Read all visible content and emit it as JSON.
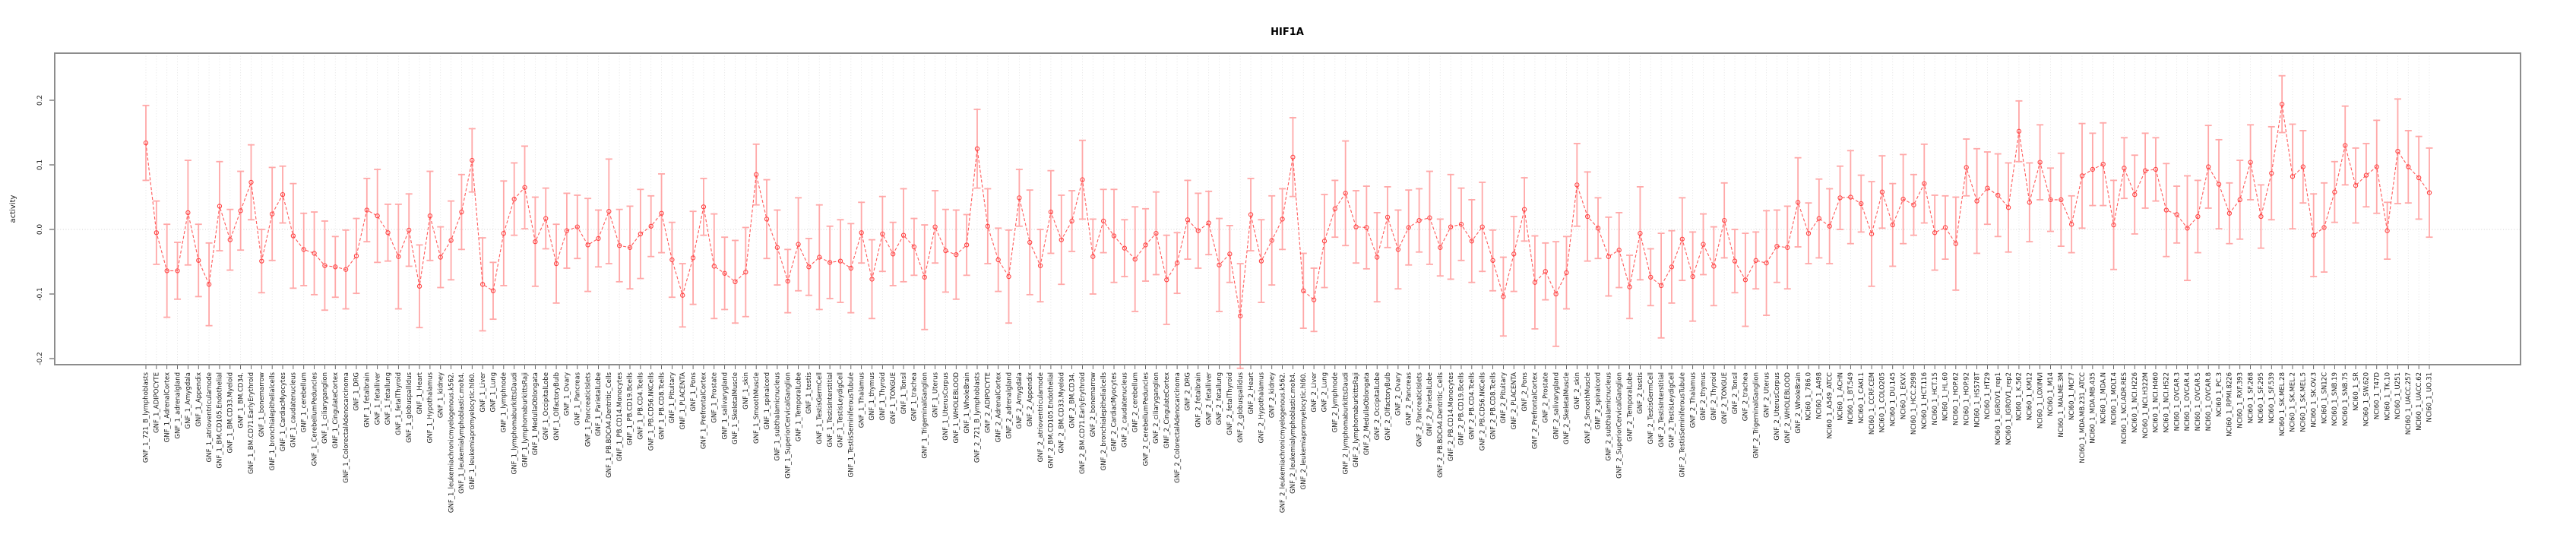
{
  "page": {
    "title": "HIF1A"
  },
  "chart_data": {
    "type": "line",
    "variant": "errorbar-means",
    "title": "HIF1A",
    "xlabel": "",
    "ylabel": "activity",
    "ylim": [
      -0.25,
      0.27
    ],
    "yticks_labels": [
      "-0.2",
      "-0.1",
      "0.0",
      "0.1",
      "0.2"
    ],
    "yticks_values": [
      -0.2,
      -0.1,
      0.0,
      0.1,
      0.2
    ],
    "grid": "light dotted vertical line per category, dotted horizontal line at 0",
    "legend_position": "none",
    "series_prefixes": [
      "GNF_1_",
      "GNF_2_",
      "NCI60_1_"
    ],
    "gnf_tissues": [
      "721_B_lymphoblasts",
      "ADIPOCYTE",
      "AdrenalCortex",
      "adrenalgland",
      "Amygdala",
      "Appendix",
      "atrioventricularnode",
      "BM.CD105.Endothelial",
      "BM.CD33.Myeloid",
      "BM.CD34.",
      "BM.CD71.EarlyErythroid",
      "bonemarrow",
      "bronchialepithelialcells",
      "CardiacMyocytes",
      "caudatenucleus",
      "cerebellum",
      "CerebellumPeduncles",
      "ciliaryganglion",
      "CingulateCortex",
      "ColorectalAdenocarcinoma",
      "DRG",
      "fetalbrain",
      "fetalliver",
      "fetallung",
      "fetalThyroid",
      "globuspallidus",
      "Heart",
      "Hypothalamus",
      "kidney",
      "leukemiachronicmyelogenous.k562.",
      "leukemialymphoblastic.molt4.",
      "leukemiapromyelocytic.hl60.",
      "Liver",
      "Lung",
      "lymphnode",
      "lymphomaburkittsDaudi",
      "lymphomaburkittsRaji",
      "MedullaOblongata",
      "OccipitalLobe",
      "OlfactoryBulb",
      "Ovary",
      "Pancreas",
      "PancreaticIslets",
      "ParietalLobe",
      "PB.BDCA4.Dentritic_Cells",
      "PB.CD14.Monocytes",
      "PB.CD19.Bcells",
      "PB.CD4.Tcells",
      "PB.CD56.NKCells",
      "PB.CD8.Tcells",
      "Pituitary",
      "PLACENTA",
      "Pons",
      "PrefrontalCortex",
      "Prostate",
      "salivarygland",
      "SkeletalMuscle",
      "skin",
      "SmoothMuscle",
      "spinalcord",
      "subthalamicnucleus",
      "SuperiorCervicalGanglion",
      "TemporalLobe",
      "testis",
      "TestisGermCell",
      "TestisInterstitial",
      "TestisLeydigCell",
      "TestisSeminiferousTubule",
      "Thalamus",
      "thymus",
      "Thyroid",
      "TONGUE",
      "Tonsil",
      "trachea",
      "TrigeminalGanglion",
      "Uterus",
      "UterusCorpus",
      "WHOLEBLOOD",
      "WholeBrain"
    ],
    "nci60_cell_lines": [
      "786.0",
      "A498",
      "A549_ATCC",
      "ACHN",
      "BT.549",
      "CAKI.1",
      "CCRF.CEM",
      "COLO205",
      "DU.145",
      "EKVX",
      "HCC.2998",
      "HCT.116",
      "HCT.15",
      "HL.60",
      "HOP.62",
      "HOP.92",
      "HS578T",
      "HT29",
      "IGROV1_rep1",
      "IGROV1_rep2",
      "K.562",
      "KM12",
      "LOXIMVI",
      "M14",
      "MALME.3M",
      "MCF7",
      "MDA.MB.231_ATCC",
      "MDA.MB.435",
      "MDA.N",
      "MOLT.4",
      "NCI.ADR.RES",
      "NCI.H226",
      "NCI.H322M",
      "NCI.H460",
      "NCI.H522",
      "OVCAR.3",
      "OVCAR.4",
      "OVCAR.5",
      "OVCAR.8",
      "PC.3",
      "RPMI.8226",
      "RXF.393",
      "SF.268",
      "SF.295",
      "SF.539",
      "SK.MEL.28",
      "SK.MEL.2",
      "SK.MEL.5",
      "SK.OV.3",
      "SN12C",
      "SNB.19",
      "SNB.75",
      "SR",
      "SW.620",
      "T47D",
      "TK.10",
      "U251",
      "UACC.257",
      "UACC.62",
      "UO.31"
    ],
    "values": [
      0.134,
      -0.005,
      -0.064,
      -0.064,
      0.026,
      -0.048,
      -0.085,
      0.036,
      -0.016,
      0.029,
      0.073,
      -0.049,
      0.024,
      0.054,
      -0.01,
      -0.031,
      -0.037,
      -0.056,
      -0.058,
      -0.062,
      -0.041,
      0.03,
      0.021,
      -0.005,
      -0.042,
      -0.001,
      -0.088,
      0.021,
      -0.043,
      -0.017,
      0.027,
      0.107,
      -0.085,
      -0.095,
      -0.006,
      0.047,
      0.065,
      -0.019,
      0.017,
      -0.053,
      -0.002,
      0.004,
      -0.024,
      -0.014,
      0.028,
      -0.025,
      -0.028,
      -0.007,
      0.005,
      0.025,
      -0.047,
      -0.102,
      -0.044,
      0.035,
      -0.057,
      -0.068,
      -0.081,
      -0.066,
      0.085,
      0.016,
      -0.028,
      -0.08,
      -0.023,
      -0.058,
      -0.043,
      -0.051,
      -0.049,
      -0.06,
      -0.005,
      -0.077,
      -0.007,
      -0.038,
      -0.009,
      -0.027,
      -0.074,
      0.004,
      -0.033,
      -0.039,
      -0.024,
      0.125,
      0.005,
      -0.047,
      -0.073,
      0.049,
      -0.02,
      -0.056,
      0.027,
      -0.016,
      0.013,
      0.077,
      -0.042,
      0.013,
      -0.01,
      -0.029,
      -0.046,
      -0.024,
      -0.006,
      -0.078,
      -0.052,
      0.015,
      -0.002,
      0.01,
      -0.055,
      -0.038,
      -0.134,
      0.023,
      -0.049,
      -0.017,
      0.016,
      0.112,
      -0.095,
      -0.109,
      -0.018,
      0.032,
      0.056,
      0.004,
      0.003,
      -0.043,
      0.019,
      -0.031,
      0.003,
      0.014,
      0.018,
      -0.028,
      0.004,
      0.008,
      -0.018,
      0.004,
      -0.048,
      -0.104,
      -0.038,
      0.031,
      -0.082,
      -0.065,
      -0.1,
      -0.067,
      0.069,
      0.02,
      0.002,
      -0.042,
      -0.032,
      -0.089,
      -0.006,
      -0.074,
      -0.087,
      -0.058,
      -0.015,
      -0.073,
      -0.023,
      -0.057,
      0.014,
      -0.049,
      -0.078,
      -0.048,
      -0.052,
      -0.026,
      -0.028,
      0.042,
      -0.006,
      0.017,
      0.005,
      0.049,
      0.05,
      0.04,
      -0.007,
      0.058,
      0.007,
      0.047,
      0.038,
      0.071,
      -0.005,
      0.003,
      -0.022,
      0.096,
      0.044,
      0.064,
      0.053,
      0.034,
      0.152,
      0.042,
      0.104,
      0.046,
      0.046,
      0.008,
      0.083,
      0.093,
      0.101,
      0.007,
      0.095,
      0.054,
      0.091,
      0.093,
      0.03,
      0.023,
      0.002,
      0.02,
      0.097,
      0.07,
      0.025,
      0.046,
      0.104,
      0.02,
      0.087,
      0.194,
      0.082,
      0.097,
      -0.009,
      0.003,
      0.058,
      0.13,
      0.068,
      0.084,
      0.097,
      -0.002,
      0.121,
      0.097,
      0.08,
      0.057
    ],
    "err_half_pattern": [
      0.058,
      0.049,
      0.072,
      0.044,
      0.081,
      0.056,
      0.064,
      0.069,
      0.047,
      0.061
    ],
    "colors": {
      "point": "#ff4242",
      "line": "#ff5a5a",
      "errorbar": "#ffa8a8",
      "grid": "#dedede",
      "zero_line": "#cfcfcf",
      "frame": "#8c8c8c",
      "tick": "#444444",
      "label": "#1a1a1a",
      "title": "#000000"
    }
  }
}
